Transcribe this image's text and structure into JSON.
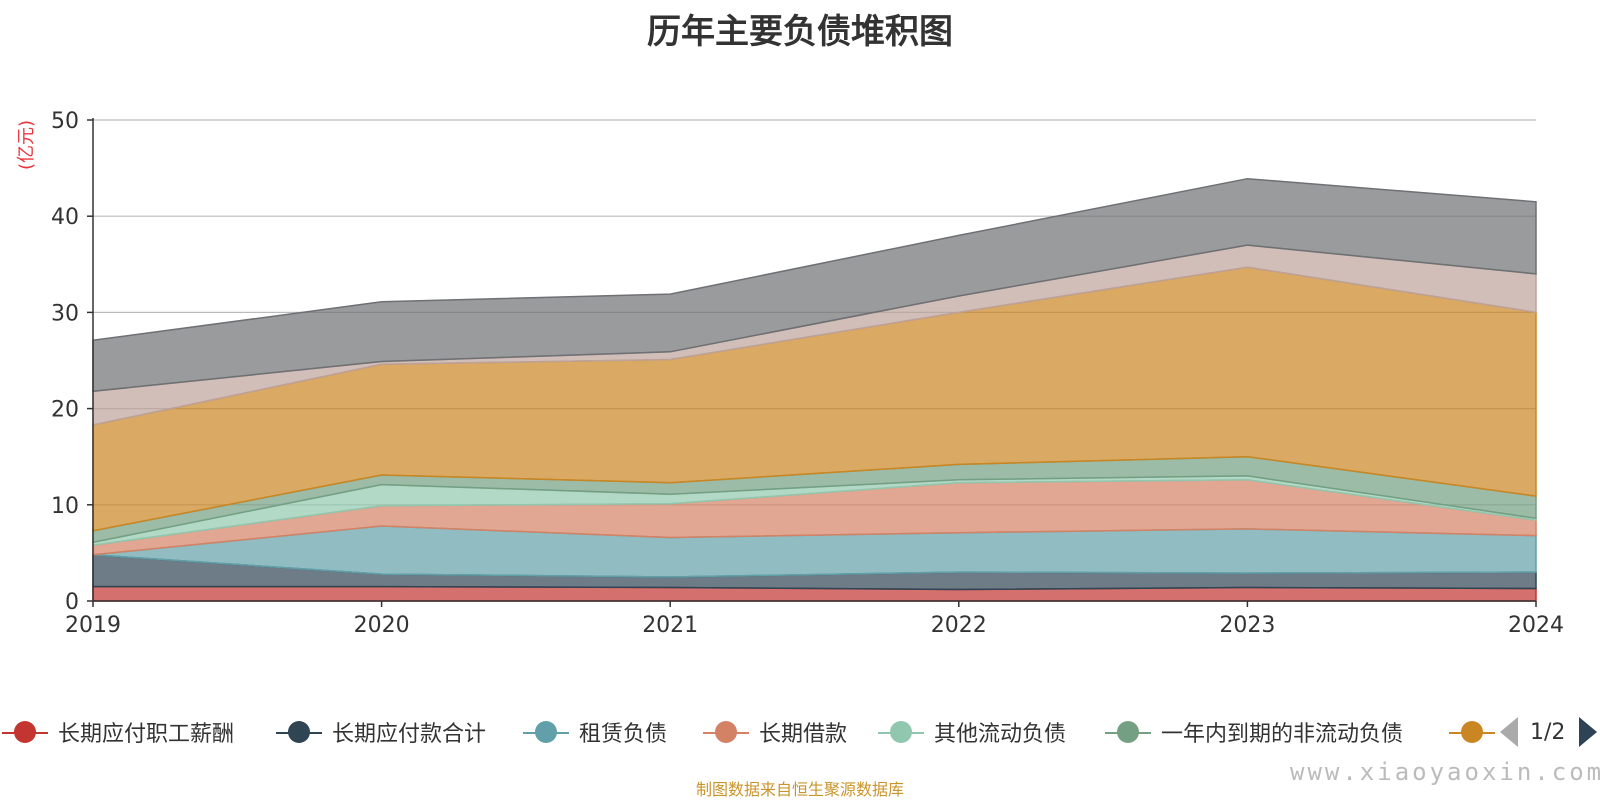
{
  "chart_data": {
    "type": "area",
    "stacked": true,
    "title": "历年主要负债堆积图",
    "unit": "(亿元)",
    "x": [
      "2019",
      "2020",
      "2021",
      "2022",
      "2023",
      "2024"
    ],
    "ylim": [
      0,
      50
    ],
    "yticks": [
      0,
      10,
      20,
      30,
      40,
      50
    ],
    "grid": true,
    "legend_position": "bottom",
    "series": [
      {
        "name": "长期应付职工薪酬",
        "color": "#c23531",
        "values": [
          1.5,
          1.5,
          1.4,
          1.2,
          1.4,
          1.3
        ]
      },
      {
        "name": "长期应付款合计",
        "color": "#2f4554",
        "values": [
          3.3,
          1.3,
          1.1,
          1.8,
          1.5,
          1.7
        ]
      },
      {
        "name": "租赁负债",
        "color": "#61a0a8",
        "values": [
          0.0,
          5.0,
          4.1,
          4.1,
          4.6,
          3.8
        ]
      },
      {
        "name": "长期借款",
        "color": "#d48265",
        "values": [
          1.0,
          2.1,
          3.5,
          5.2,
          5.1,
          1.6
        ]
      },
      {
        "name": "其他流动负债",
        "color": "#91c7ae",
        "values": [
          0.3,
          2.2,
          1.0,
          0.3,
          0.4,
          0.2
        ]
      },
      {
        "name": "一年内到期的非流动负债",
        "color": "#749f83",
        "values": [
          1.2,
          1.0,
          1.2,
          1.6,
          2.0,
          2.3
        ]
      },
      {
        "name": "",
        "color": "#ca8622",
        "values": [
          11.0,
          11.5,
          12.8,
          15.8,
          19.7,
          19.1
        ]
      },
      {
        "name": "",
        "color": "#bda29a",
        "values": [
          3.5,
          0.3,
          0.8,
          1.7,
          2.3,
          4.0
        ]
      },
      {
        "name": "",
        "color": "#6e7074",
        "values": [
          5.3,
          6.2,
          6.0,
          6.3,
          6.9,
          7.5
        ]
      }
    ]
  },
  "legend": {
    "page_text": "1/2"
  },
  "footer": {
    "source": "制图数据来自恒生聚源数据库",
    "watermark": "www.xiaoyaoxin.com"
  }
}
